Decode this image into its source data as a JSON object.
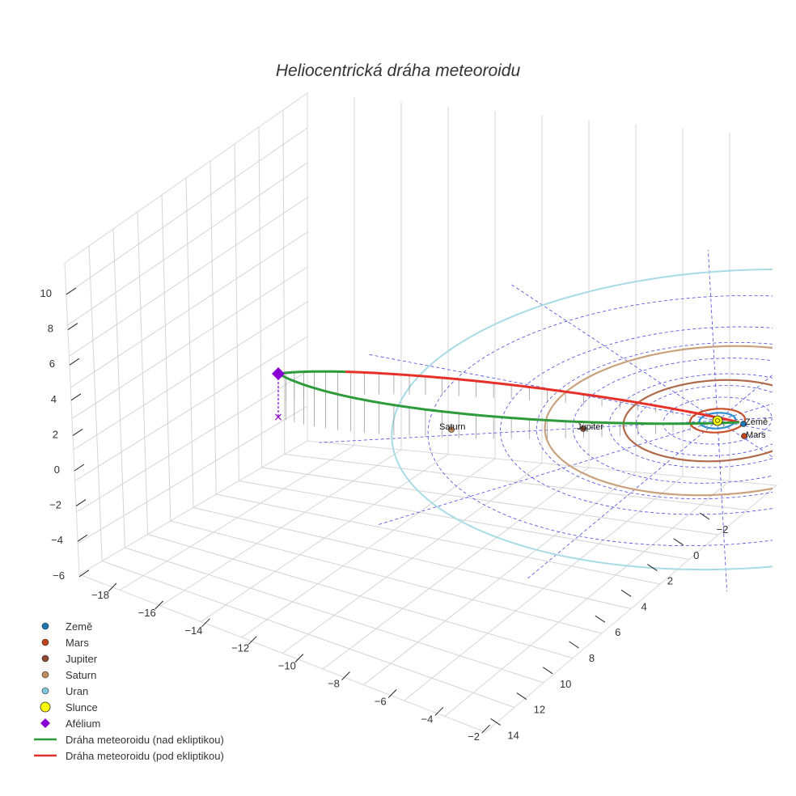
{
  "chart_data": {
    "type": "3d-orbit-plot",
    "title": "Heliocentrická dráha meteoroidu",
    "axes": {
      "x": {
        "ticks": [
          "−18",
          "−16",
          "−14",
          "−12",
          "−10",
          "−8",
          "−6",
          "−4",
          "−2"
        ],
        "range": [
          -19,
          -1
        ]
      },
      "y": {
        "ticks": [
          "−2",
          "0",
          "2",
          "4",
          "6",
          "8",
          "10",
          "12",
          "14"
        ],
        "range": [
          -3,
          15
        ]
      },
      "z": {
        "ticks": [
          "10",
          "8",
          "6",
          "4",
          "2",
          "0",
          "−2",
          "−4",
          "−6"
        ],
        "range": [
          -7,
          11
        ]
      }
    },
    "orbits": [
      {
        "name": "Země",
        "radius_au": 1.0,
        "color": "#2f8fd0"
      },
      {
        "name": "Mars",
        "radius_au": 1.52,
        "color": "#c8502a"
      },
      {
        "name": "Jupiter",
        "radius_au": 5.2,
        "color": "#b06a4a"
      },
      {
        "name": "Saturn",
        "radius_au": 9.54,
        "color": "#c9a27d"
      },
      {
        "name": "Uran",
        "radius_au": 19.2,
        "color": "#a8dbe4"
      }
    ],
    "planet_labels": [
      {
        "name": "Země",
        "text": "Země"
      },
      {
        "name": "Mars",
        "text": "Mars"
      },
      {
        "name": "Jupiter",
        "text": "Jupiter"
      },
      {
        "name": "Saturn",
        "text": "Saturn"
      }
    ],
    "meteoroid": {
      "aphelion_au": 21.5,
      "aphelion_z_au": 6.0,
      "segments": [
        {
          "name": "above",
          "label": "Dráha meteoroidu (nad ekliptikou)",
          "color": "#2e9b3a"
        },
        {
          "name": "below",
          "label": "Dráha meteoroidu (pod ekliptikou)",
          "color": "#e8302a"
        }
      ]
    },
    "legend": [
      {
        "label": "Země",
        "marker": "circle",
        "color": "#1f77b4"
      },
      {
        "label": "Mars",
        "marker": "circle",
        "color": "#c0441c"
      },
      {
        "label": "Jupiter",
        "marker": "circle",
        "color": "#8b4a32"
      },
      {
        "label": "Saturn",
        "marker": "circle",
        "color": "#c08a5a"
      },
      {
        "label": "Uran",
        "marker": "circle",
        "color": "#7ec8dc"
      },
      {
        "label": "Slunce",
        "marker": "big-circle",
        "color": "#ffff00"
      },
      {
        "label": "Afélium",
        "marker": "diamond",
        "color": "#8a00d4"
      },
      {
        "label": "Dráha meteoroidu (nad ekliptikou)",
        "marker": "line",
        "color": "#2e9b3a"
      },
      {
        "label": "Dráha meteoroidu (pod ekliptikou)",
        "marker": "line",
        "color": "#e8302a"
      }
    ]
  }
}
